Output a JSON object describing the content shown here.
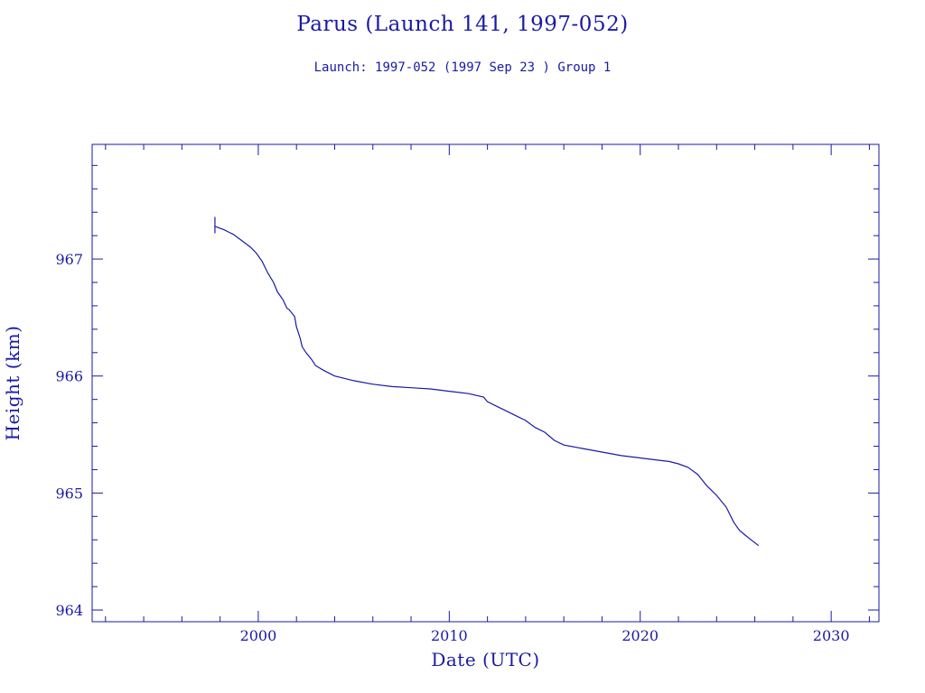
{
  "chart_data": {
    "type": "line",
    "title": "Parus (Launch 141, 1997-052)",
    "subtitle": "Launch: 1997-052  (1997 Sep 23 )  Group 1",
    "xlabel": "Date (UTC)",
    "ylabel": "Height (km)",
    "xlim": [
      1991.3,
      2032.5
    ],
    "ylim": [
      963.9,
      967.98
    ],
    "x_ticks": [
      2000,
      2010,
      2020,
      2030
    ],
    "x_tick_labels": [
      "2000",
      "2010",
      "2020",
      "2030"
    ],
    "y_ticks": [
      964,
      965,
      966,
      967
    ],
    "y_tick_labels": [
      "964",
      "965",
      "966",
      "967"
    ],
    "grid": false,
    "colors": {
      "line": "#1a1aa6",
      "axis": "#1a1aa6",
      "text": "#1a1aa6"
    },
    "launch_marker": {
      "x": 1997.73,
      "y_range": [
        967.22,
        967.36
      ]
    },
    "series": [
      {
        "x": [
          1997.73,
          1998.2,
          1998.7,
          1999.2,
          1999.6,
          1999.9,
          2000.2,
          2000.5,
          2000.8,
          2001.0,
          2001.3,
          2001.5,
          2001.6,
          2001.9,
          2002.0,
          2002.2,
          2002.3,
          2002.5,
          2002.8,
          2003.0,
          2003.4,
          2004.0,
          2004.5,
          2005.0,
          2006.0,
          2007.0,
          2008.0,
          2009.0,
          2010.0,
          2011.0,
          2011.8,
          2012.0,
          2012.5,
          2013.0,
          2013.5,
          2014.0,
          2014.5,
          2015.0,
          2015.5,
          2016.0,
          2017.0,
          2018.0,
          2019.0,
          2020.0,
          2021.0,
          2021.5,
          2022.0,
          2022.5,
          2023.0,
          2023.5,
          2024.0,
          2024.5,
          2024.9,
          2025.2,
          2025.5,
          2025.8,
          2026.2
        ],
        "y": [
          967.28,
          967.25,
          967.21,
          967.15,
          967.1,
          967.05,
          966.98,
          966.88,
          966.8,
          966.72,
          966.65,
          966.58,
          966.57,
          966.51,
          966.42,
          966.32,
          966.25,
          966.2,
          966.14,
          966.09,
          966.05,
          966.0,
          965.98,
          965.96,
          965.93,
          965.91,
          965.9,
          965.89,
          965.87,
          965.85,
          965.82,
          965.78,
          965.74,
          965.7,
          965.66,
          965.62,
          965.56,
          965.52,
          965.45,
          965.41,
          965.38,
          965.35,
          965.32,
          965.3,
          965.28,
          965.27,
          965.25,
          965.22,
          965.16,
          965.06,
          964.98,
          964.88,
          964.75,
          964.68,
          964.64,
          964.6,
          964.55
        ]
      }
    ]
  }
}
